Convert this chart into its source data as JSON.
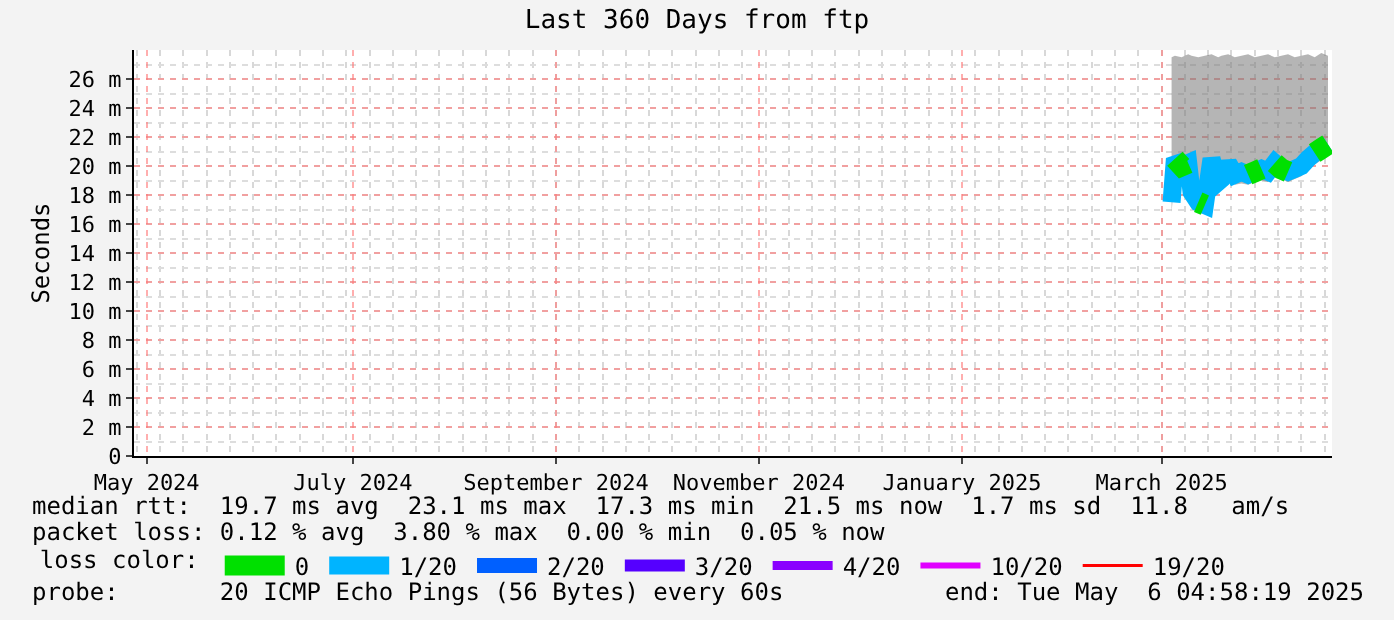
{
  "chart_data": {
    "type": "line",
    "title": "Last 360 Days from ftp",
    "ylabel": "Seconds",
    "legend_title": "loss color:",
    "x": [
      "2025-03-19",
      "2025-03-20",
      "2025-03-22",
      "2025-03-24",
      "2025-03-25",
      "2025-03-27",
      "2025-03-29",
      "2025-03-31",
      "2025-04-02",
      "2025-04-03",
      "2025-04-05",
      "2025-04-07",
      "2025-04-09",
      "2025-04-11",
      "2025-04-13",
      "2025-04-15",
      "2025-04-17",
      "2025-04-19",
      "2025-04-21",
      "2025-04-23",
      "2025-04-25",
      "2025-04-27",
      "2025-04-29",
      "2025-05-01",
      "2025-05-03",
      "2025-05-05"
    ],
    "series": [
      {
        "name": "0",
        "color": "#00e000",
        "values": [
          null,
          20.5,
          20.0,
          20.2,
          null,
          17.5,
          17.3,
          null,
          null,
          null,
          null,
          null,
          null,
          19.4,
          19.6,
          19.8,
          null,
          20.2,
          19.8,
          19.6,
          null,
          null,
          null,
          20.9,
          21.2,
          21.5
        ]
      },
      {
        "name": "1/20",
        "color": "#00b4ff",
        "values": [
          17.5,
          20.5,
          20.0,
          20.2,
          18.2,
          17.5,
          17.3,
          20.5,
          18.9,
          19.1,
          20.2,
          19.4,
          19.6,
          19.4,
          19.6,
          19.8,
          19.6,
          20.2,
          19.8,
          19.6,
          19.8,
          20.0,
          20.5,
          20.9,
          21.2,
          21.5
        ],
        "lower": [
          16.8,
          19.5,
          19.2,
          19.3,
          17.5,
          16.8,
          16.7,
          19.3,
          18.2,
          18.4,
          19.3,
          18.7,
          18.8,
          18.7,
          18.9,
          19.0,
          18.9,
          19.4,
          19.1,
          18.9,
          19.1,
          19.3,
          19.7,
          20.1,
          20.4,
          20.7
        ],
        "upper": [
          27.5,
          27.6,
          27.5,
          27.7,
          27.6,
          27.5,
          27.6,
          27.7,
          27.5,
          27.6,
          27.7,
          27.5,
          27.6,
          27.7,
          27.5,
          27.6,
          27.7,
          27.5,
          27.6,
          27.7,
          27.5,
          27.6,
          27.7,
          27.5,
          27.8,
          27.6
        ]
      },
      {
        "name": "2/20",
        "color": "#0060ff",
        "values": [
          null,
          null,
          null,
          null,
          null,
          null,
          null,
          null,
          null,
          null,
          null,
          null,
          null,
          null,
          null,
          null,
          null,
          null,
          null,
          null,
          null,
          null,
          null,
          null,
          null,
          null
        ]
      },
      {
        "name": "3/20",
        "color": "#5500ff",
        "values": [
          null,
          null,
          null,
          null,
          null,
          null,
          null,
          null,
          null,
          null,
          null,
          null,
          null,
          null,
          null,
          null,
          null,
          null,
          null,
          null,
          null,
          null,
          null,
          null,
          null,
          null
        ]
      },
      {
        "name": "4/20",
        "color": "#8a00ff",
        "values": [
          null,
          null,
          null,
          null,
          null,
          null,
          null,
          null,
          null,
          null,
          null,
          null,
          null,
          null,
          null,
          null,
          null,
          null,
          null,
          null,
          null,
          null,
          null,
          null,
          null,
          null
        ]
      },
      {
        "name": "10/20",
        "color": "#e000ff",
        "values": [
          null,
          null,
          null,
          null,
          null,
          null,
          null,
          null,
          null,
          null,
          null,
          null,
          null,
          null,
          null,
          null,
          null,
          null,
          null,
          null,
          null,
          null,
          null,
          null,
          null,
          null
        ]
      },
      {
        "name": "19/20",
        "color": "#ff0000",
        "values": [
          null,
          null,
          null,
          null,
          null,
          null,
          null,
          null,
          null,
          null,
          null,
          null,
          null,
          null,
          null,
          null,
          null,
          null,
          null,
          null,
          null,
          null,
          null,
          null,
          null,
          null
        ]
      }
    ],
    "xlim": [
      "2024-05-11T04:58",
      "2025-05-06T04:58"
    ],
    "xticks": [
      {
        "value": "2024-05-15",
        "label": "May 2024"
      },
      {
        "value": "2024-07-16",
        "label": "July 2024"
      },
      {
        "value": "2024-09-15",
        "label": "September 2024"
      },
      {
        "value": "2024-11-15",
        "label": "November 2024"
      },
      {
        "value": "2025-01-15",
        "label": "January 2025"
      },
      {
        "value": "2025-03-16",
        "label": "March 2025"
      }
    ],
    "ylim": [
      0,
      28
    ],
    "yticks": [
      0,
      {
        "value": 2,
        "label": "2 m"
      },
      {
        "value": 4,
        "label": "4 m"
      },
      {
        "value": 6,
        "label": "6 m"
      },
      {
        "value": 8,
        "label": "8 m"
      },
      {
        "value": 10,
        "label": "10 m"
      },
      {
        "value": 12,
        "label": "12 m"
      },
      {
        "value": 14,
        "label": "14 m"
      },
      {
        "value": 16,
        "label": "16 m"
      },
      {
        "value": 18,
        "label": "18 m"
      },
      {
        "value": 20,
        "label": "20 m"
      },
      {
        "value": 22,
        "label": "22 m"
      },
      {
        "value": 24,
        "label": "24 m"
      },
      {
        "value": 26,
        "label": "26 m"
      }
    ],
    "grid": true,
    "legend": "bottom",
    "annotations": [
      "median rtt:  19.7 ms avg  23.1 ms max  17.3 ms min  21.5 ms now  1.7 ms sd  11.8   am/s",
      "packet loss: 0.12 % avg  3.80 % max  0.00 % min  0.05 % now",
      "probe:       20 ICMP Echo Pings (56 Bytes) every 60s",
      "end: Tue May  6 04:58:19 2025"
    ]
  }
}
